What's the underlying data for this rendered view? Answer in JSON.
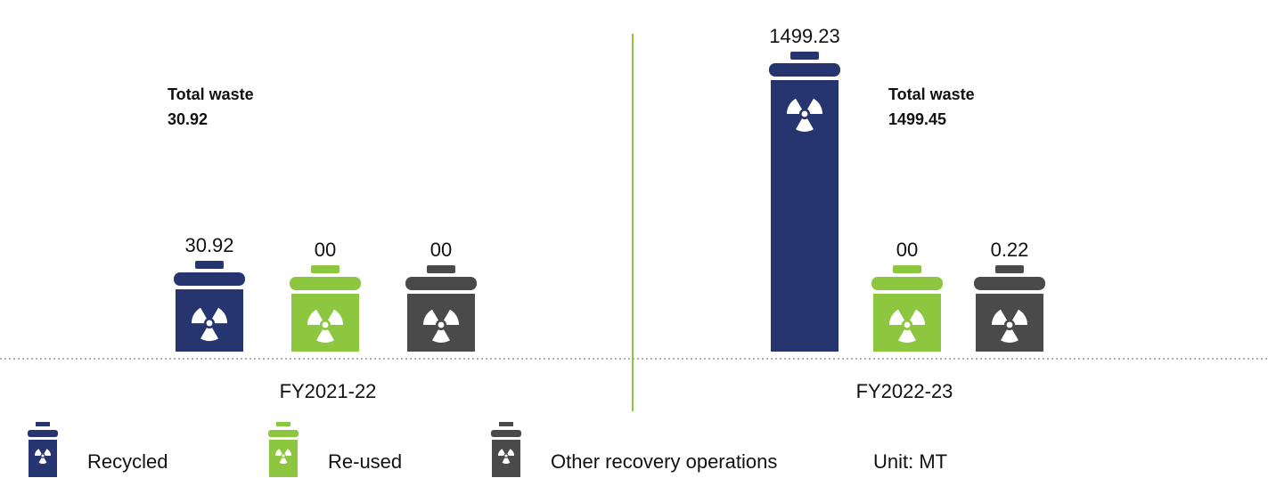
{
  "chart_data": {
    "type": "bar",
    "categories": [
      "FY2021-22",
      "FY2022-23"
    ],
    "series": [
      {
        "name": "Recycled",
        "color": "#263570",
        "values": [
          30.92,
          1499.23
        ]
      },
      {
        "name": "Re-used",
        "color": "#8dc63f",
        "values": [
          0,
          0
        ],
        "value_labels": [
          "00",
          "00"
        ]
      },
      {
        "name": "Other recovery operations",
        "color": "#4a4a4a",
        "values": [
          0,
          0.22
        ],
        "value_labels": [
          "00",
          "0.22"
        ]
      }
    ],
    "annotations": [
      {
        "label": "Total waste",
        "value": 30.92
      },
      {
        "label": "Total waste",
        "value": 1499.45
      }
    ],
    "unit": "Unit: MT",
    "divider_color": "#8dc63f"
  }
}
